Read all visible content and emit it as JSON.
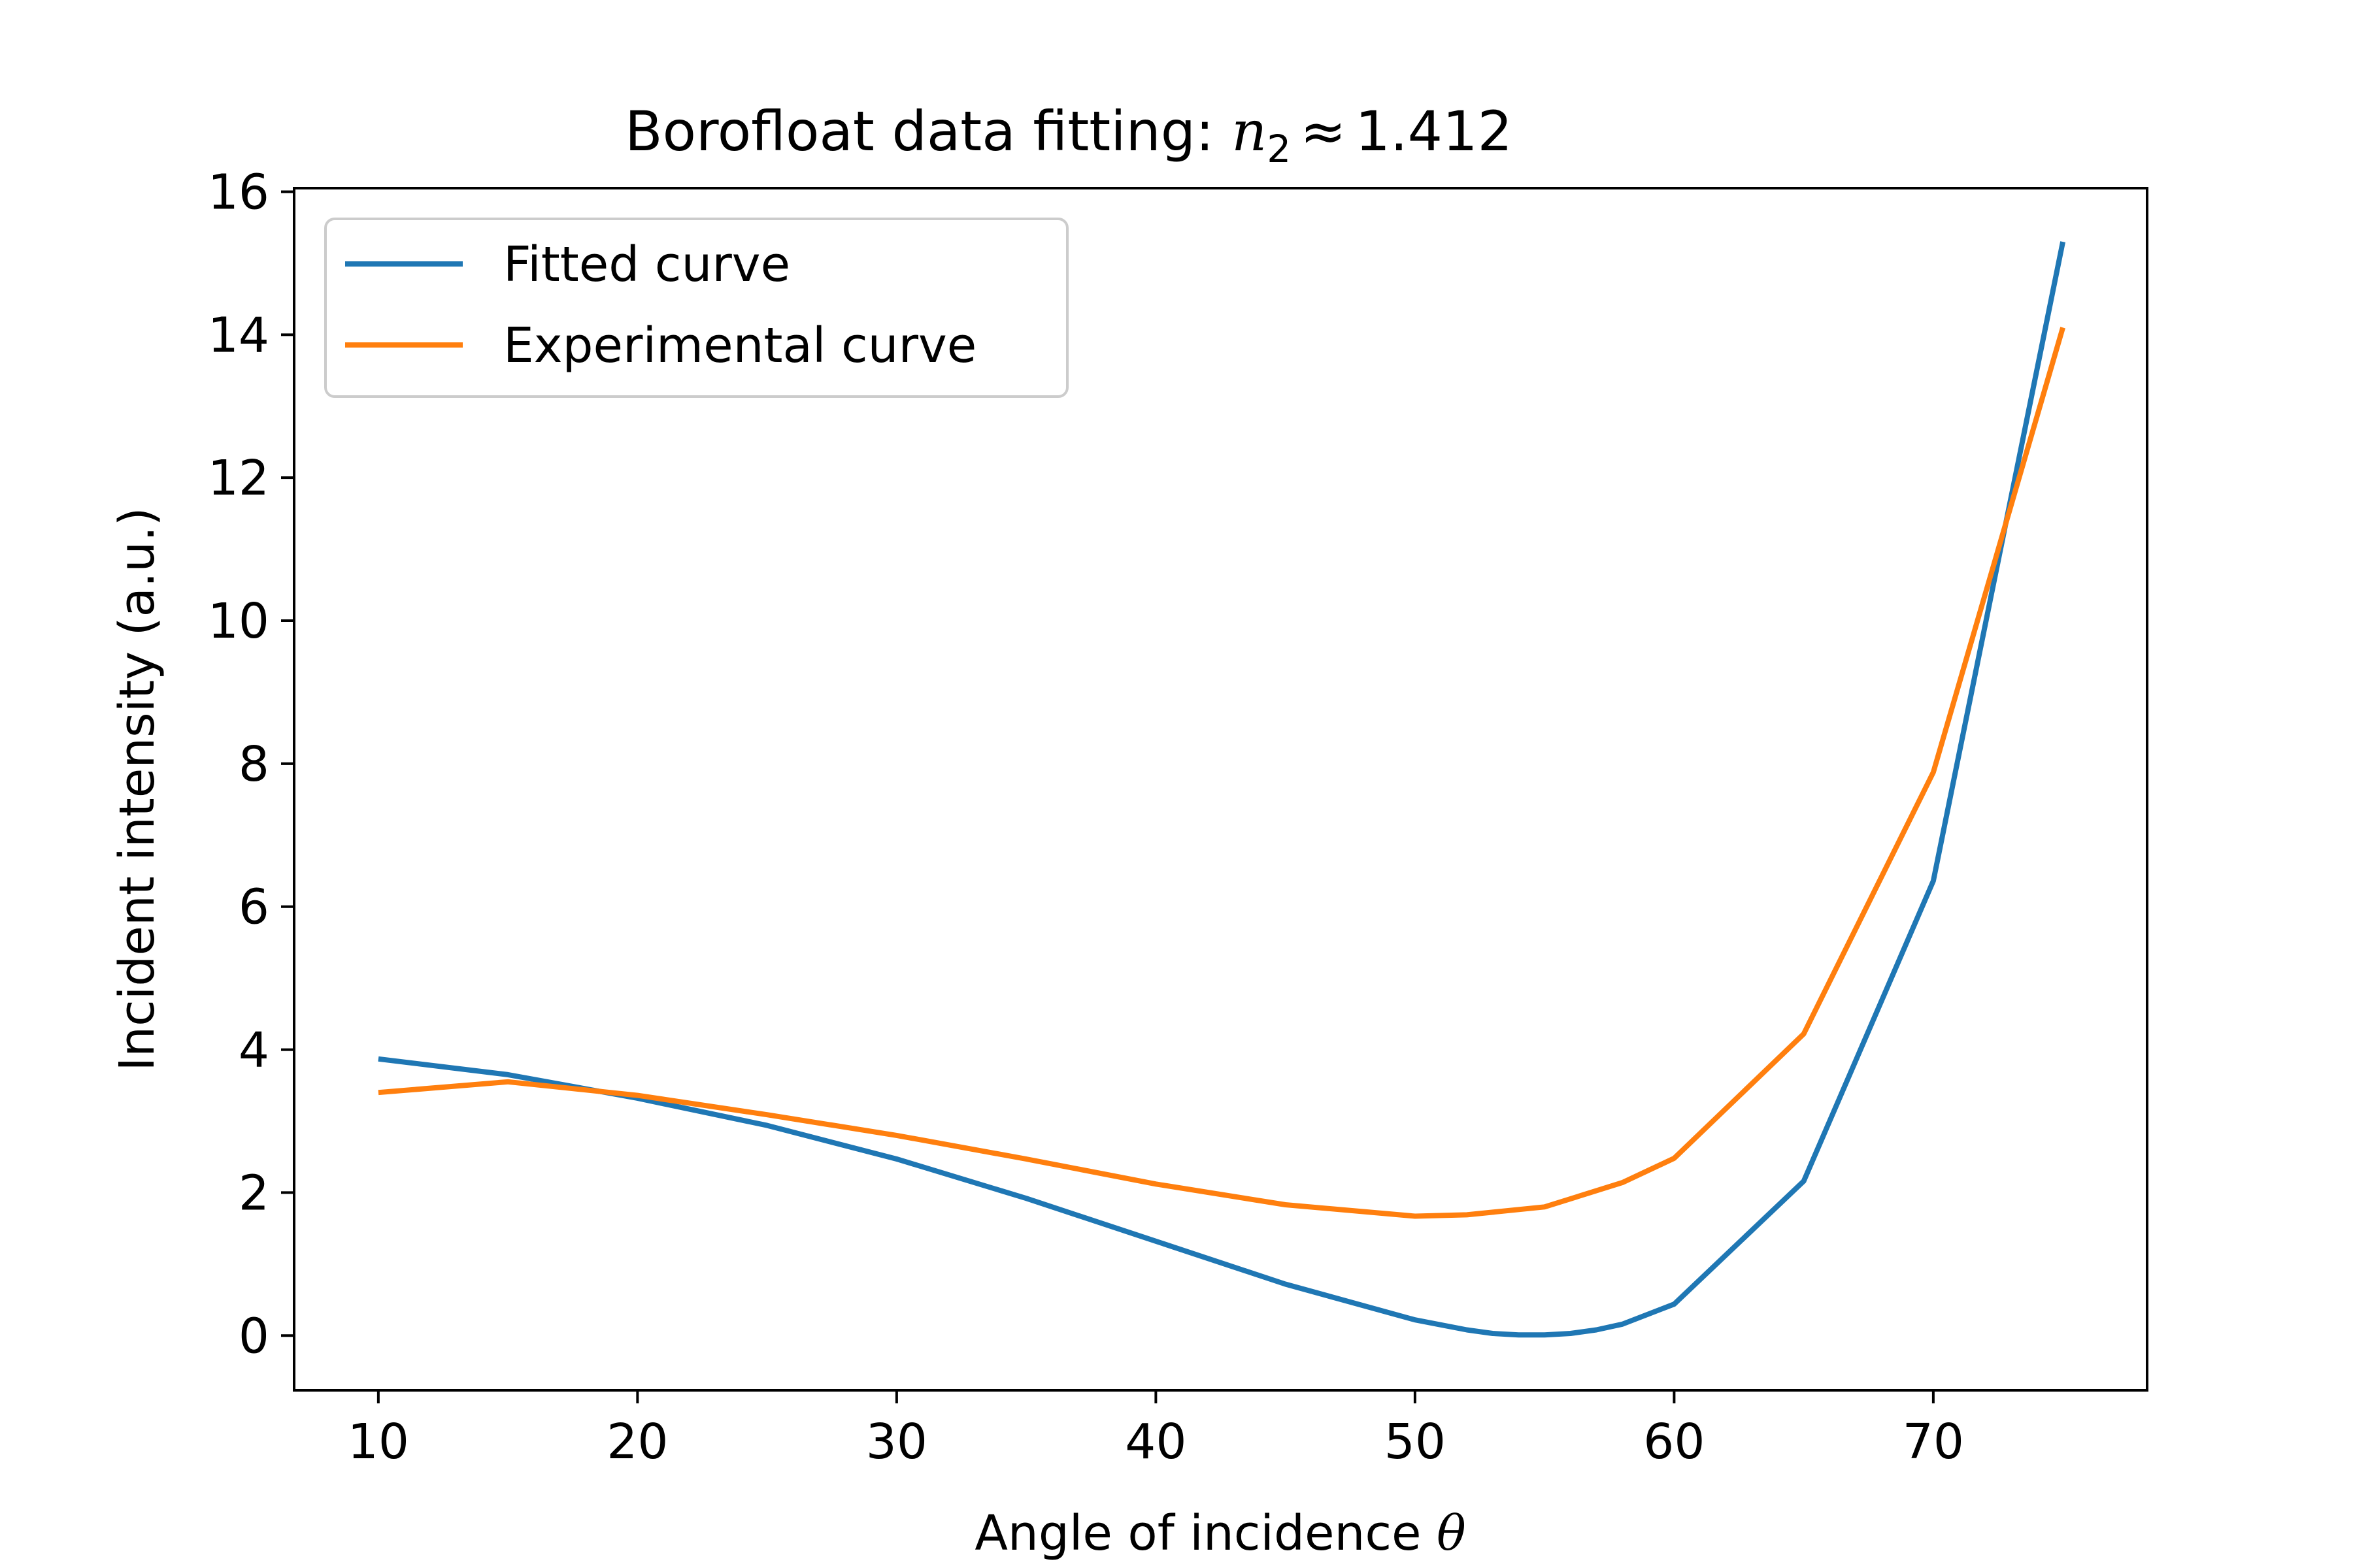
{
  "chart_data": {
    "type": "line",
    "title": {
      "prefix": "Borofloat data fitting: ",
      "var": "n",
      "sub": "2",
      "rel": "≈",
      "value": "1.412"
    },
    "xlabel": {
      "text": "Angle of incidence ",
      "symbol": "θ"
    },
    "ylabel": "Incident intensity (a.u.)",
    "xlim": [
      6.75,
      78.25
    ],
    "ylim": [
      -0.765,
      16.05
    ],
    "xticks": [
      10,
      20,
      30,
      40,
      50,
      60,
      70
    ],
    "xtick_labels": [
      "10",
      "20",
      "30",
      "40",
      "50",
      "60",
      "70"
    ],
    "yticks": [
      0,
      2,
      4,
      6,
      8,
      10,
      12,
      14,
      16
    ],
    "ytick_labels": [
      "0",
      "2",
      "4",
      "6",
      "8",
      "10",
      "12",
      "14",
      "16"
    ],
    "grid": false,
    "legend": {
      "position": "upper-left"
    },
    "series": [
      {
        "name": "Fitted curve",
        "color": "#1f77b4",
        "x": [
          10,
          15,
          20,
          25,
          30,
          35,
          40,
          45,
          50,
          52,
          53,
          54,
          55,
          56,
          57,
          58,
          60,
          65,
          70,
          75
        ],
        "y": [
          3.87,
          3.65,
          3.32,
          2.94,
          2.47,
          1.92,
          1.32,
          0.72,
          0.22,
          0.08,
          0.03,
          0.01,
          0.01,
          0.03,
          0.08,
          0.16,
          0.44,
          2.16,
          6.36,
          15.3
        ]
      },
      {
        "name": "Experimental curve",
        "color": "#ff7f0e",
        "x": [
          10,
          15,
          20,
          25,
          30,
          35,
          40,
          45,
          50,
          52,
          55,
          58,
          60,
          65,
          70,
          75
        ],
        "y": [
          3.4,
          3.55,
          3.36,
          3.09,
          2.8,
          2.47,
          2.12,
          1.83,
          1.67,
          1.69,
          1.8,
          2.14,
          2.48,
          4.22,
          7.88,
          14.1
        ]
      }
    ]
  }
}
